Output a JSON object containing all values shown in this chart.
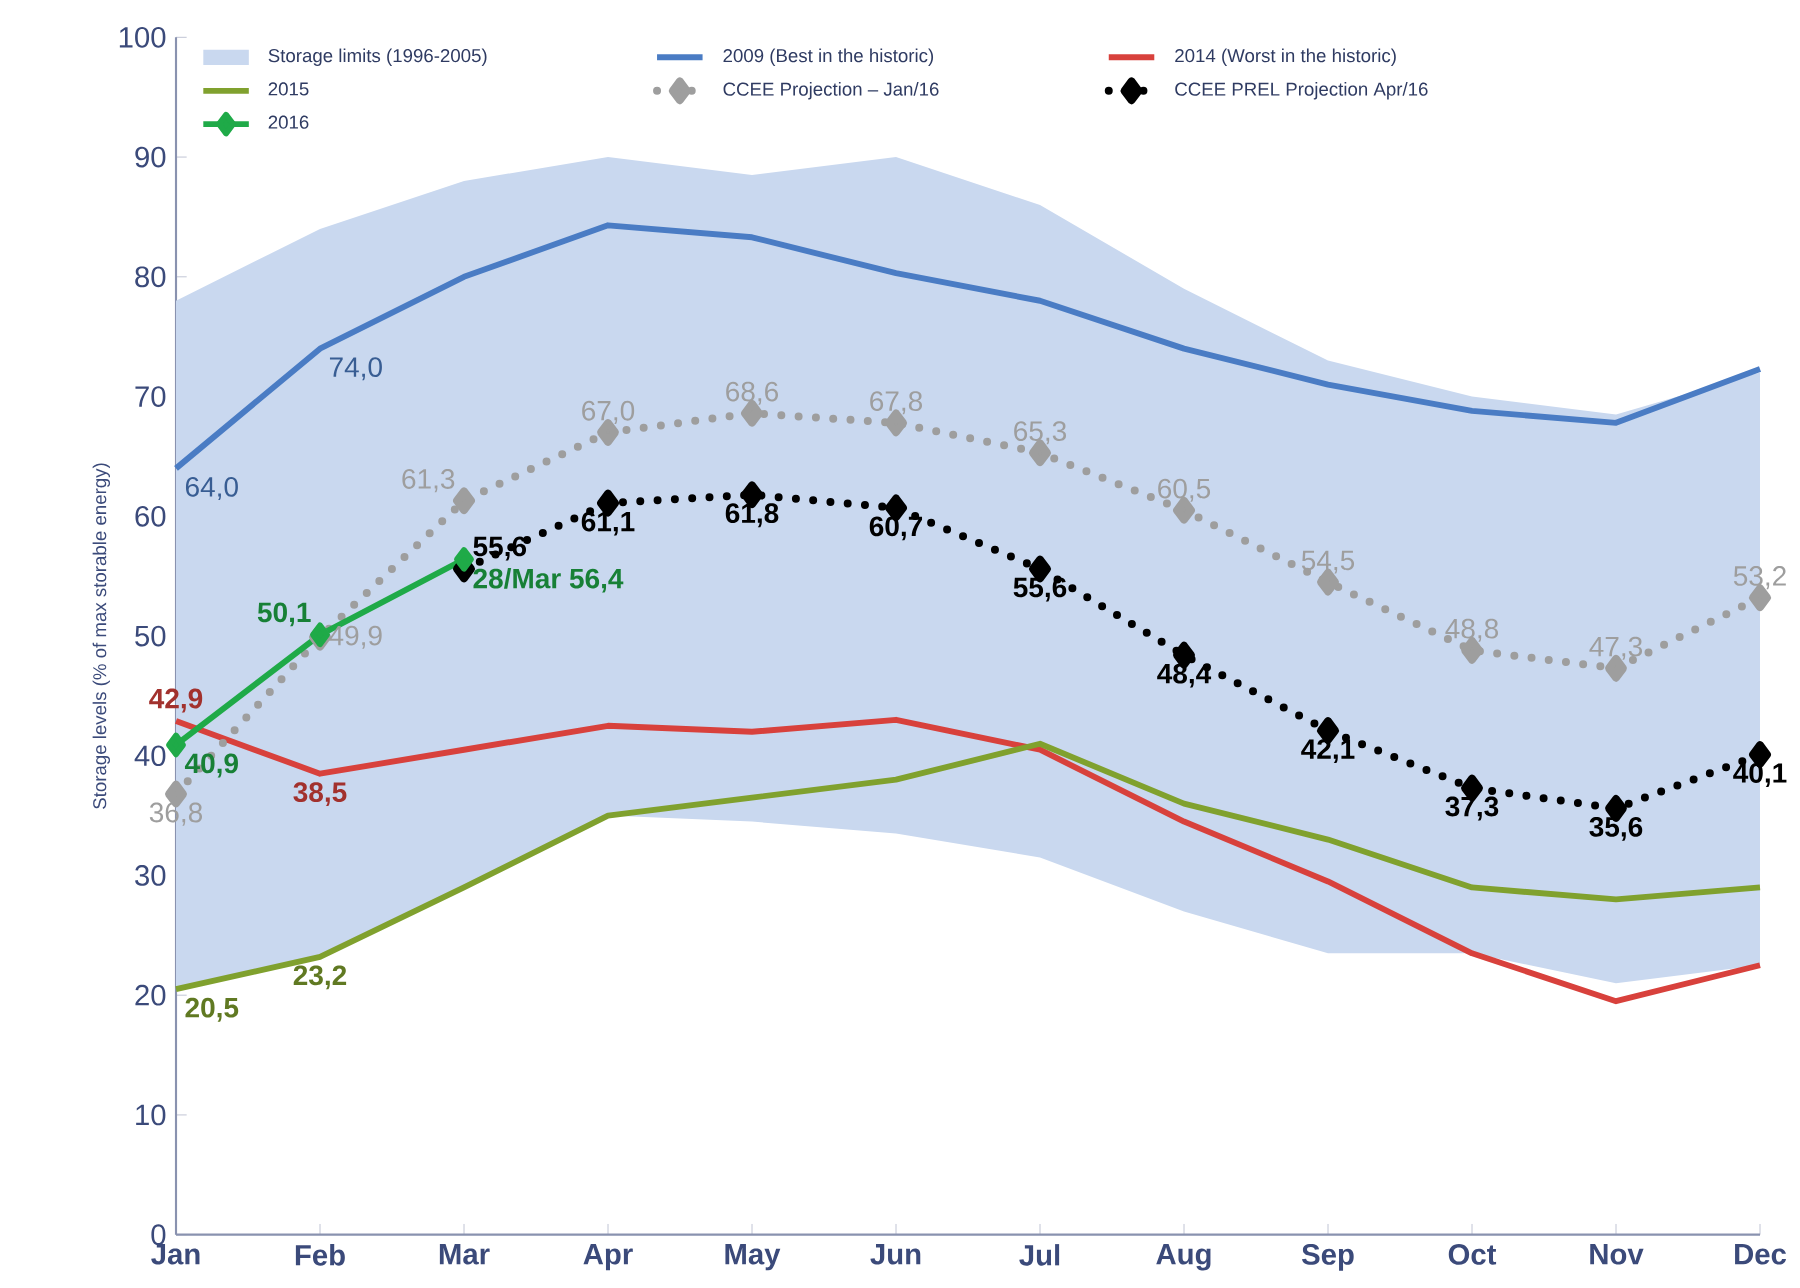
{
  "chart_data": {
    "type": "line",
    "ylabel": "Storage levels (% of max storable energy)",
    "categories": [
      "Jan",
      "Feb",
      "Mar",
      "Apr",
      "May",
      "Jun",
      "Jul",
      "Aug",
      "Sep",
      "Oct",
      "Nov",
      "Dec"
    ],
    "ylim": [
      0,
      100
    ],
    "yticks": [
      0,
      10,
      20,
      30,
      40,
      50,
      60,
      70,
      80,
      90,
      100
    ],
    "grid": false,
    "legend": "top",
    "series": [
      {
        "name": "Storage limits (1996-2005)",
        "type": "area",
        "color": "#c9d8ef",
        "values": [
          null,
          null,
          null,
          null,
          null,
          null,
          null,
          null,
          null,
          null,
          null,
          null
        ],
        "lower": [
          20.5,
          23,
          29,
          35,
          34.5,
          33.5,
          31.5,
          27,
          23.5,
          23.5,
          21,
          22.5
        ],
        "upper": [
          78,
          84,
          88,
          90,
          88.5,
          90,
          86,
          79,
          73,
          70,
          68.5,
          72
        ]
      },
      {
        "name": "2009 (Best in the historic)",
        "color": "#4a7cc4",
        "marker": "none",
        "line_style": "solid",
        "values": [
          64.0,
          74.0,
          80.0,
          84.3,
          83.3,
          80.3,
          78,
          74,
          71,
          68.8,
          67.8,
          72.3
        ],
        "value_labels": [
          "64,0",
          "74,0",
          null,
          null,
          null,
          null,
          null,
          null,
          null,
          null,
          null,
          null
        ]
      },
      {
        "name": "2014 (Worst in the historic)",
        "color": "#d8413c",
        "marker": "none",
        "line_style": "solid",
        "values": [
          42.9,
          38.5,
          40.5,
          42.5,
          42,
          43,
          40.5,
          34.5,
          29.5,
          23.5,
          19.5,
          22.5
        ],
        "value_labels": [
          "42,9",
          "38,5",
          null,
          null,
          null,
          null,
          null,
          null,
          null,
          null,
          null,
          null
        ]
      },
      {
        "name": "2015",
        "color": "#80a12e",
        "marker": "none",
        "line_style": "solid",
        "values": [
          20.5,
          23.2,
          29,
          35,
          36.5,
          38,
          41,
          36,
          33,
          29,
          28,
          29
        ],
        "value_labels": [
          "20,5",
          "23,2",
          null,
          null,
          null,
          null,
          null,
          null,
          null,
          null,
          null,
          null
        ]
      },
      {
        "name": "CCEE Projection – Jan/16",
        "color": "#9e9e9e",
        "marker": "diamond",
        "line_style": "dotted",
        "values": [
          36.8,
          49.9,
          61.3,
          67.0,
          68.6,
          67.8,
          65.3,
          60.5,
          54.5,
          48.8,
          47.3,
          53.2
        ],
        "value_labels": [
          "36,8",
          "49,9",
          "61,3",
          "67,0",
          "68,6",
          "67,8",
          "65,3",
          "60,5",
          "54,5",
          "48,8",
          "47,3",
          "53,2"
        ]
      },
      {
        "name": "CCEE PREL Projection Apr/16",
        "color": "#000000",
        "marker": "diamond",
        "line_style": "dotted",
        "values": [
          null,
          null,
          55.6,
          61.1,
          61.8,
          60.7,
          55.6,
          48.4,
          42.1,
          37.3,
          35.6,
          40.1
        ],
        "value_labels": [
          null,
          null,
          "55,6",
          "61,1",
          "61,8",
          "60,7",
          "55,6",
          "48,4",
          "42,1",
          "37,3",
          "35,6",
          "40,1"
        ]
      },
      {
        "name": "2016",
        "color": "#1faa48",
        "marker": "diamond",
        "line_style": "solid",
        "values": [
          40.9,
          50.1,
          56.4,
          null,
          null,
          null,
          null,
          null,
          null,
          null,
          null,
          null
        ],
        "value_labels": [
          "40,9",
          "50,1",
          "28/Mar 56,4",
          null,
          null,
          null,
          null,
          null,
          null,
          null,
          null,
          null
        ]
      }
    ]
  }
}
